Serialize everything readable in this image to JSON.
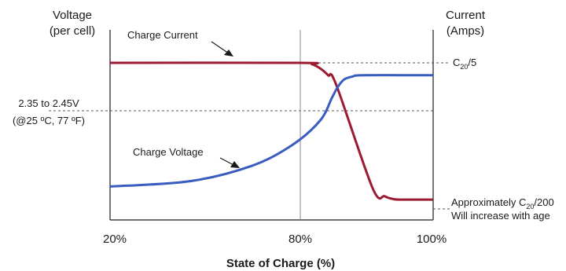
{
  "chart_data": {
    "type": "line",
    "title": "",
    "xlabel": "State of Charge (%)",
    "left_axis_label": [
      "Voltage",
      "(per cell)"
    ],
    "right_axis_label": [
      "Current",
      "(Amps)"
    ],
    "x_ticks": [
      "20%",
      "80%",
      "100%"
    ],
    "x_tick_values": [
      20,
      80,
      100
    ],
    "xlim": [
      20,
      100
    ],
    "grid": false,
    "series": [
      {
        "name": "Charge Current",
        "color": "#9b1b30",
        "x": [
          20,
          67,
          70,
          72,
          74,
          76,
          85,
          88,
          90,
          92,
          100
        ],
        "y": [
          1.0,
          1.0,
          0.99,
          0.96,
          0.91,
          0.84,
          0.09,
          0.03,
          0.01,
          0.005,
          0.005
        ]
      },
      {
        "name": "Charge Voltage",
        "color": "#3a5bbf",
        "x": [
          20,
          40,
          55,
          65,
          72,
          75,
          76.5,
          78,
          80,
          83,
          100
        ],
        "y": [
          0.1,
          0.14,
          0.25,
          0.4,
          0.58,
          0.75,
          0.83,
          0.88,
          0.9,
          0.91,
          0.91
        ]
      }
    ],
    "annotations": {
      "charge_current_label": "Charge Current",
      "charge_voltage_label": "Charge Voltage",
      "voltage_level": "2.35 to 2.45V",
      "voltage_temp": "(@25 ºC, 77 ºF)",
      "current_max": {
        "prefix": "C",
        "sub": "20",
        "suffix": "/5"
      },
      "current_min_line1": {
        "prefix": "Approximately C",
        "sub": "20",
        "suffix": "/200"
      },
      "current_min_line2": "Will increase with age"
    }
  }
}
